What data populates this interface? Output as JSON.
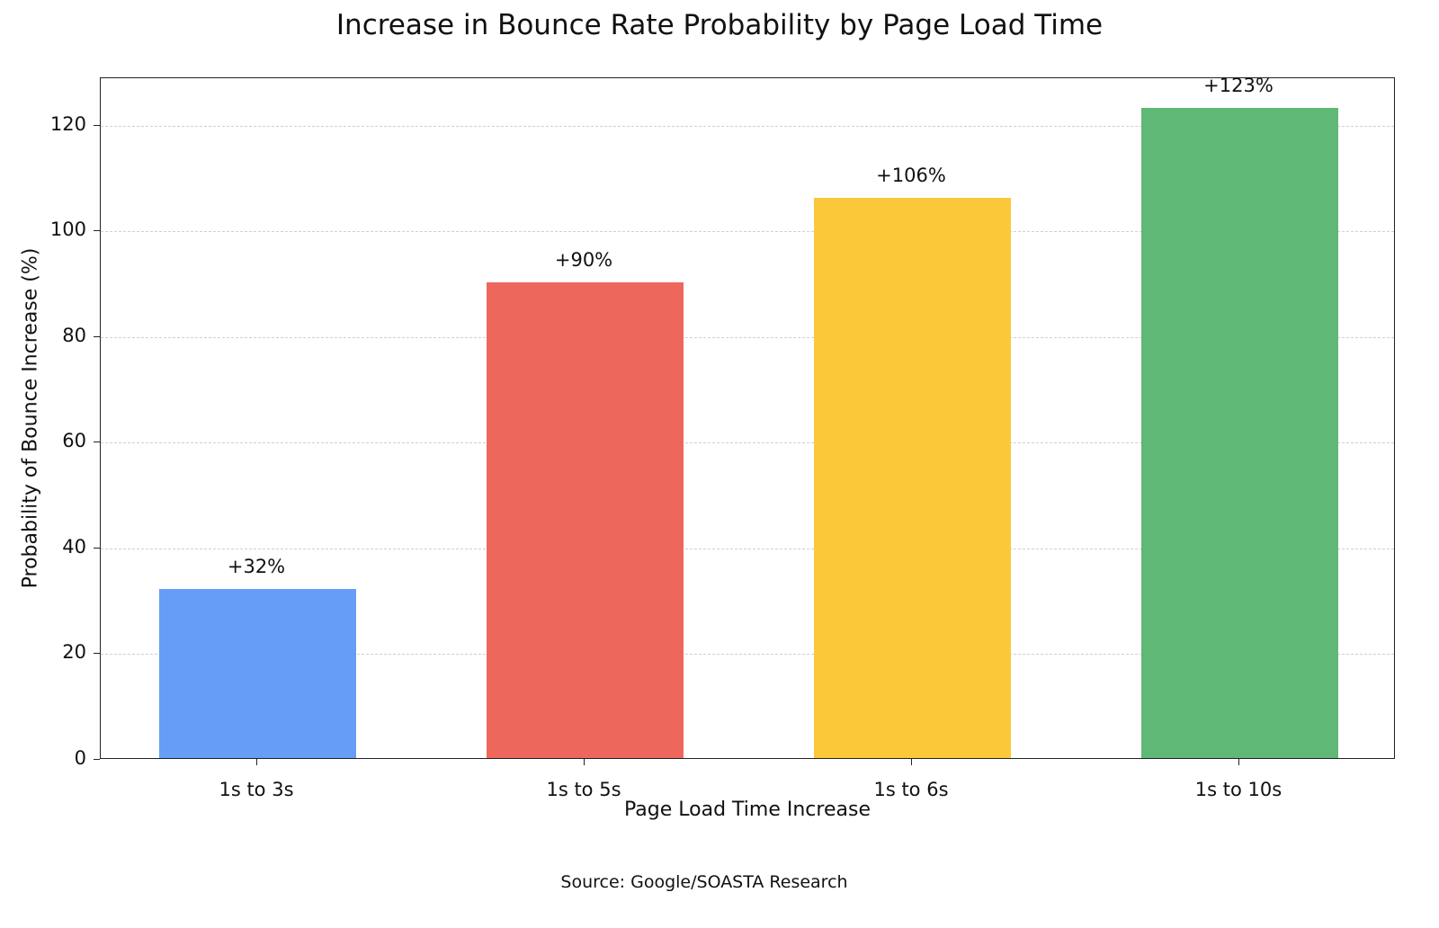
{
  "chart_data": {
    "type": "bar",
    "title": "Increase in Bounce Rate Probability by Page Load Time",
    "xlabel": "Page Load Time Increase",
    "ylabel": "Probability of Bounce Increase (%)",
    "categories": [
      "1s to 3s",
      "1s to 5s",
      "1s to 6s",
      "1s to 10s"
    ],
    "values": [
      32,
      90,
      106,
      123
    ],
    "data_labels": [
      "+32%",
      "+90%",
      "+106%",
      "+123%"
    ],
    "colors": [
      "#669df6",
      "#ee675c",
      "#fbc839",
      "#5fb876"
    ],
    "yticks": [
      0,
      20,
      40,
      60,
      80,
      100,
      120
    ],
    "ylim": [
      0,
      129
    ],
    "grid": "y-dashed",
    "legend": null,
    "annotation": "Source: Google/SOASTA Research"
  }
}
